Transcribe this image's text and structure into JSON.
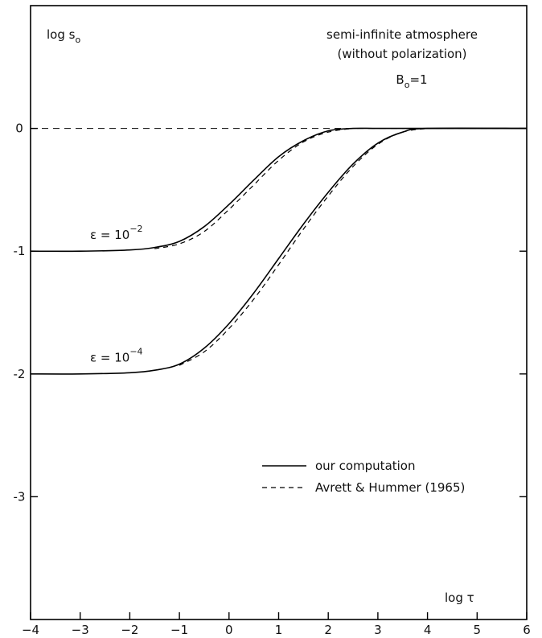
{
  "chart_data": {
    "type": "line",
    "title_lines": [
      "semi-infinite atmosphere",
      "(without polarization)"
    ],
    "parameter": {
      "text": "B",
      "sub": "o",
      "rest": "=1"
    },
    "xlabel": {
      "main": "log ",
      "symbol": "τ"
    },
    "ylabel": {
      "main": "log s",
      "sub": "o"
    },
    "xlim": [
      -4,
      6
    ],
    "ylim": [
      -4,
      1
    ],
    "x_ticks": [
      -4,
      -3,
      -2,
      -1,
      0,
      1,
      2,
      3,
      4,
      5,
      6
    ],
    "x_tick_labels": [
      "−4",
      "−3",
      "−2",
      "−1",
      "0",
      "1",
      "2",
      "3",
      "4",
      "5",
      "6"
    ],
    "y_ticks": [
      0,
      -1,
      -2,
      -3
    ],
    "y_tick_labels": [
      "0",
      "-1",
      "-2",
      "-3"
    ],
    "reference_line": {
      "y": 0,
      "style": "dashed"
    },
    "grid": false,
    "legend_position": "right",
    "series": [
      {
        "name": "our computation",
        "style": "solid",
        "curves": [
          {
            "x": [
              -4,
              -3,
              -2,
              -1.5,
              -1,
              -0.5,
              0,
              0.5,
              1,
              1.5,
              2,
              2.5,
              3,
              4,
              6
            ],
            "y": [
              -1,
              -1,
              -0.99,
              -0.97,
              -0.92,
              -0.8,
              -0.62,
              -0.42,
              -0.23,
              -0.1,
              -0.02,
              0,
              0,
              0,
              0
            ]
          },
          {
            "x": [
              -4,
              -3,
              -2,
              -1.5,
              -1,
              -0.5,
              0,
              0.5,
              1,
              1.5,
              2,
              2.5,
              3,
              3.5,
              4,
              6
            ],
            "y": [
              -2,
              -2,
              -1.99,
              -1.97,
              -1.92,
              -1.79,
              -1.59,
              -1.34,
              -1.06,
              -0.78,
              -0.52,
              -0.29,
              -0.12,
              -0.03,
              0,
              0
            ]
          }
        ]
      },
      {
        "name": "Avrett & Hummer (1965)",
        "style": "dashed",
        "curves": [
          {
            "x": [
              -1.5,
              -1,
              -0.5,
              0,
              0.5,
              1,
              1.5,
              2,
              2.5
            ],
            "y": [
              -0.98,
              -0.94,
              -0.84,
              -0.66,
              -0.46,
              -0.26,
              -0.11,
              -0.03,
              0
            ]
          },
          {
            "x": [
              -1,
              -0.5,
              0,
              0.5,
              1,
              1.5,
              2,
              2.5,
              3,
              3.5,
              4
            ],
            "y": [
              -1.93,
              -1.82,
              -1.63,
              -1.39,
              -1.11,
              -0.82,
              -0.55,
              -0.31,
              -0.13,
              -0.03,
              0
            ]
          }
        ]
      }
    ],
    "annotations": [
      {
        "base": "ε = 10",
        "exp": "−2",
        "x": -2.8,
        "y": -0.9
      },
      {
        "base": "ε = 10",
        "exp": "−4",
        "x": -2.8,
        "y": -1.9
      }
    ]
  }
}
